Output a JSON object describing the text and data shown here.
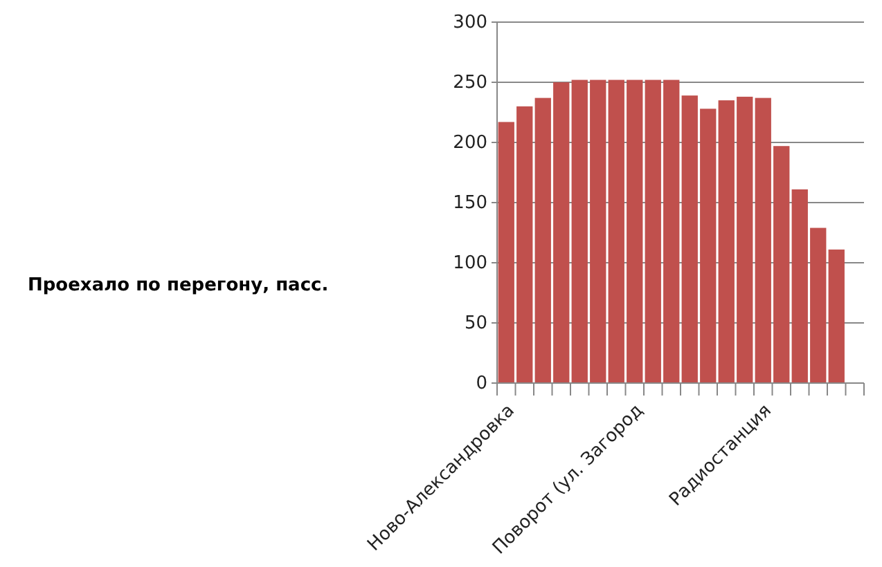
{
  "chart_data": {
    "type": "bar",
    "ylabel": "Проехало по перегону, пасс.",
    "categories": [
      "Ново-Александровка",
      null,
      null,
      null,
      null,
      null,
      null,
      "Поворот (ул. Загород",
      null,
      null,
      null,
      null,
      null,
      null,
      "Радиостанция",
      null,
      null,
      null,
      null,
      null
    ],
    "values": [
      217,
      230,
      237,
      250,
      252,
      252,
      252,
      252,
      252,
      252,
      239,
      228,
      235,
      238,
      237,
      197,
      161,
      129,
      111,
      null
    ],
    "color": "#c0504d",
    "ylim": [
      0,
      300
    ],
    "yticks": [
      0,
      50,
      100,
      150,
      200,
      250,
      300
    ],
    "grid": "y"
  }
}
